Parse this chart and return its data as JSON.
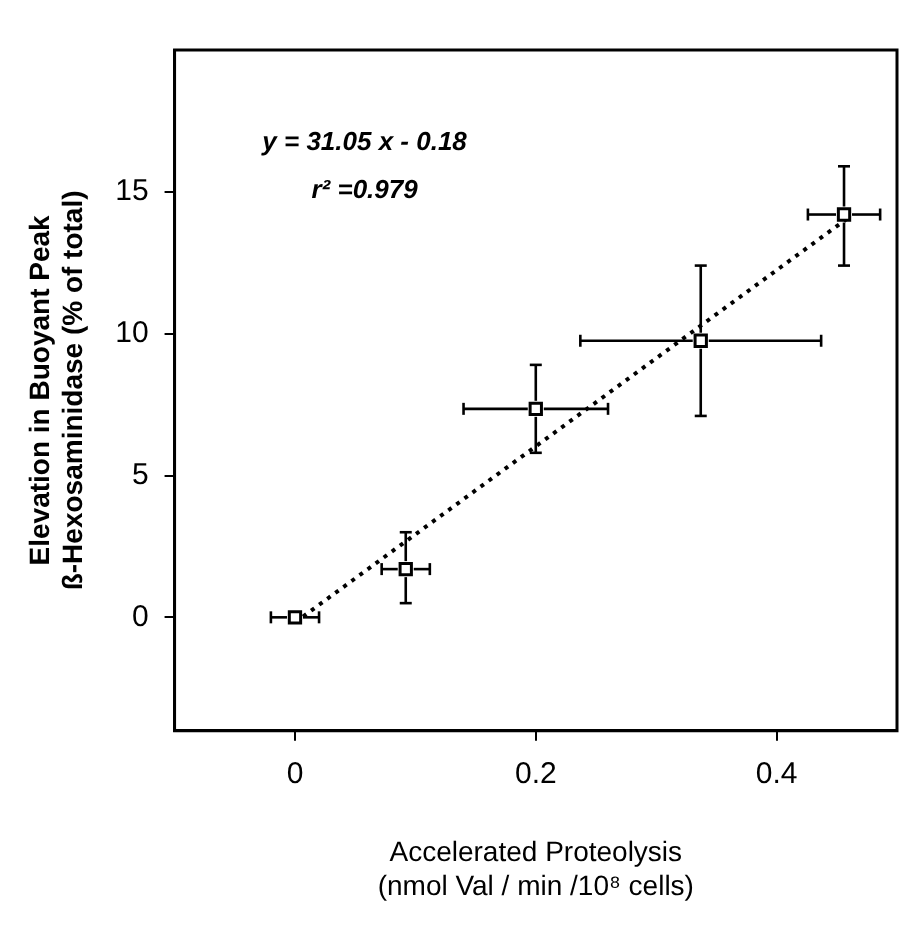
{
  "chart_data": {
    "type": "scatter",
    "xlabel": "Accelerated Proteolysis\n(nmol Val / min /10⁸ cells)",
    "ylabel": "Elevation in Buoyant Peak\nß-Hexosaminidase (% of total)",
    "annotations": [
      "y = 31.05 x - 0.18",
      "r² =0.979"
    ],
    "xlim": [
      -0.1,
      0.5
    ],
    "xticks": [
      0,
      0.2,
      0.4
    ],
    "ylim": [
      -4,
      20
    ],
    "yticks": [
      0,
      5,
      10,
      15
    ],
    "grid": false,
    "legend": false,
    "marker": "square",
    "series": [
      {
        "type": "scatter",
        "color": "#000000",
        "x": [
          0,
          0.092,
          0.2,
          0.337,
          0.456
        ],
        "values": [
          0,
          1.7,
          7.35,
          9.75,
          14.2
        ],
        "errors": [
          null,
          [
            0.5,
            3.0
          ],
          [
            5.8,
            8.9
          ],
          [
            7.1,
            12.4
          ],
          [
            12.4,
            15.9
          ]
        ],
        "xerrors": [
          0.02,
          0.02,
          0.06,
          0.1,
          0.03
        ]
      },
      {
        "type": "line",
        "color": "#000000",
        "line_style": "dotted",
        "marker": "none",
        "x": [
          0,
          0.46
        ],
        "values": [
          -0.18,
          14.1
        ]
      }
    ]
  }
}
